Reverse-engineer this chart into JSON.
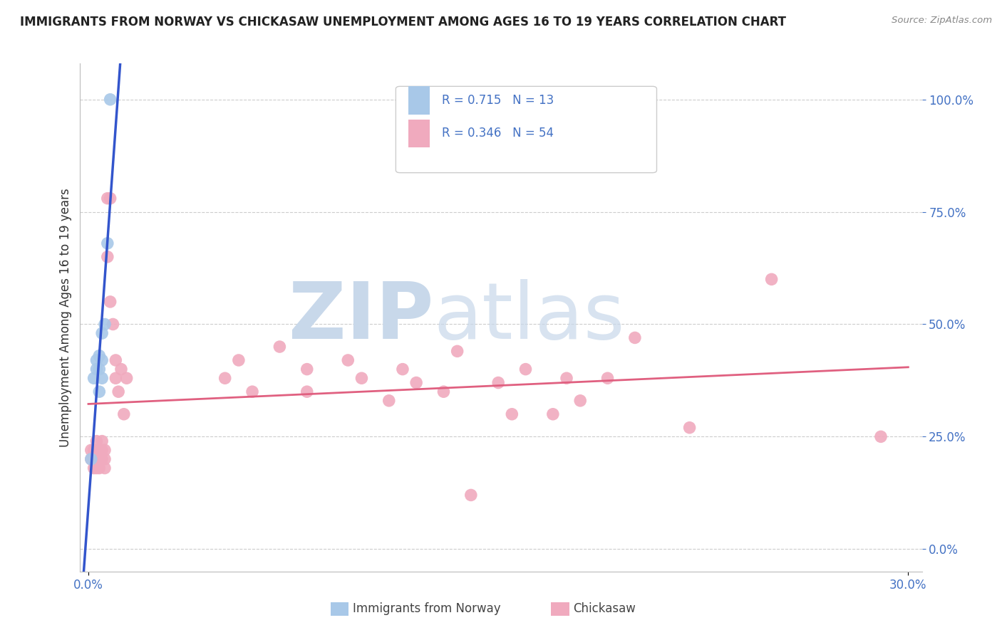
{
  "title": "IMMIGRANTS FROM NORWAY VS CHICKASAW UNEMPLOYMENT AMONG AGES 16 TO 19 YEARS CORRELATION CHART",
  "source": "Source: ZipAtlas.com",
  "ylabel": "Unemployment Among Ages 16 to 19 years",
  "xlabel_norway": "Immigrants from Norway",
  "xlabel_chickasaw": "Chickasaw",
  "norway_R": "0.715",
  "norway_N": "13",
  "chickasaw_R": "0.346",
  "chickasaw_N": "54",
  "norway_color": "#a8c8e8",
  "chickasaw_color": "#f0aabe",
  "norway_line_color": "#3355cc",
  "chickasaw_line_color": "#e06080",
  "tick_color": "#4472c4",
  "background_color": "#ffffff",
  "grid_color": "#cccccc",
  "watermark_zip": "ZIP",
  "watermark_atlas": "atlas",
  "watermark_color": "#c8d8ea",
  "norway_points_x": [
    0.001,
    0.002,
    0.003,
    0.003,
    0.004,
    0.004,
    0.004,
    0.005,
    0.005,
    0.005,
    0.006,
    0.007,
    0.008
  ],
  "norway_points_y": [
    0.2,
    0.38,
    0.4,
    0.42,
    0.35,
    0.4,
    0.43,
    0.38,
    0.42,
    0.48,
    0.5,
    0.68,
    1.0
  ],
  "chickasaw_points_x": [
    0.001,
    0.001,
    0.002,
    0.002,
    0.002,
    0.003,
    0.003,
    0.003,
    0.003,
    0.004,
    0.004,
    0.004,
    0.005,
    0.005,
    0.005,
    0.006,
    0.006,
    0.006,
    0.007,
    0.007,
    0.008,
    0.008,
    0.009,
    0.01,
    0.01,
    0.011,
    0.012,
    0.013,
    0.014,
    0.05,
    0.055,
    0.06,
    0.07,
    0.08,
    0.08,
    0.095,
    0.1,
    0.11,
    0.115,
    0.12,
    0.13,
    0.135,
    0.14,
    0.15,
    0.155,
    0.16,
    0.17,
    0.175,
    0.18,
    0.19,
    0.2,
    0.22,
    0.25,
    0.29
  ],
  "chickasaw_points_y": [
    0.2,
    0.22,
    0.18,
    0.2,
    0.22,
    0.18,
    0.2,
    0.22,
    0.24,
    0.2,
    0.22,
    0.18,
    0.2,
    0.22,
    0.24,
    0.2,
    0.22,
    0.18,
    0.78,
    0.65,
    0.78,
    0.55,
    0.5,
    0.38,
    0.42,
    0.35,
    0.4,
    0.3,
    0.38,
    0.38,
    0.42,
    0.35,
    0.45,
    0.4,
    0.35,
    0.42,
    0.38,
    0.33,
    0.4,
    0.37,
    0.35,
    0.44,
    0.12,
    0.37,
    0.3,
    0.4,
    0.3,
    0.38,
    0.33,
    0.38,
    0.47,
    0.27,
    0.6,
    0.25
  ]
}
